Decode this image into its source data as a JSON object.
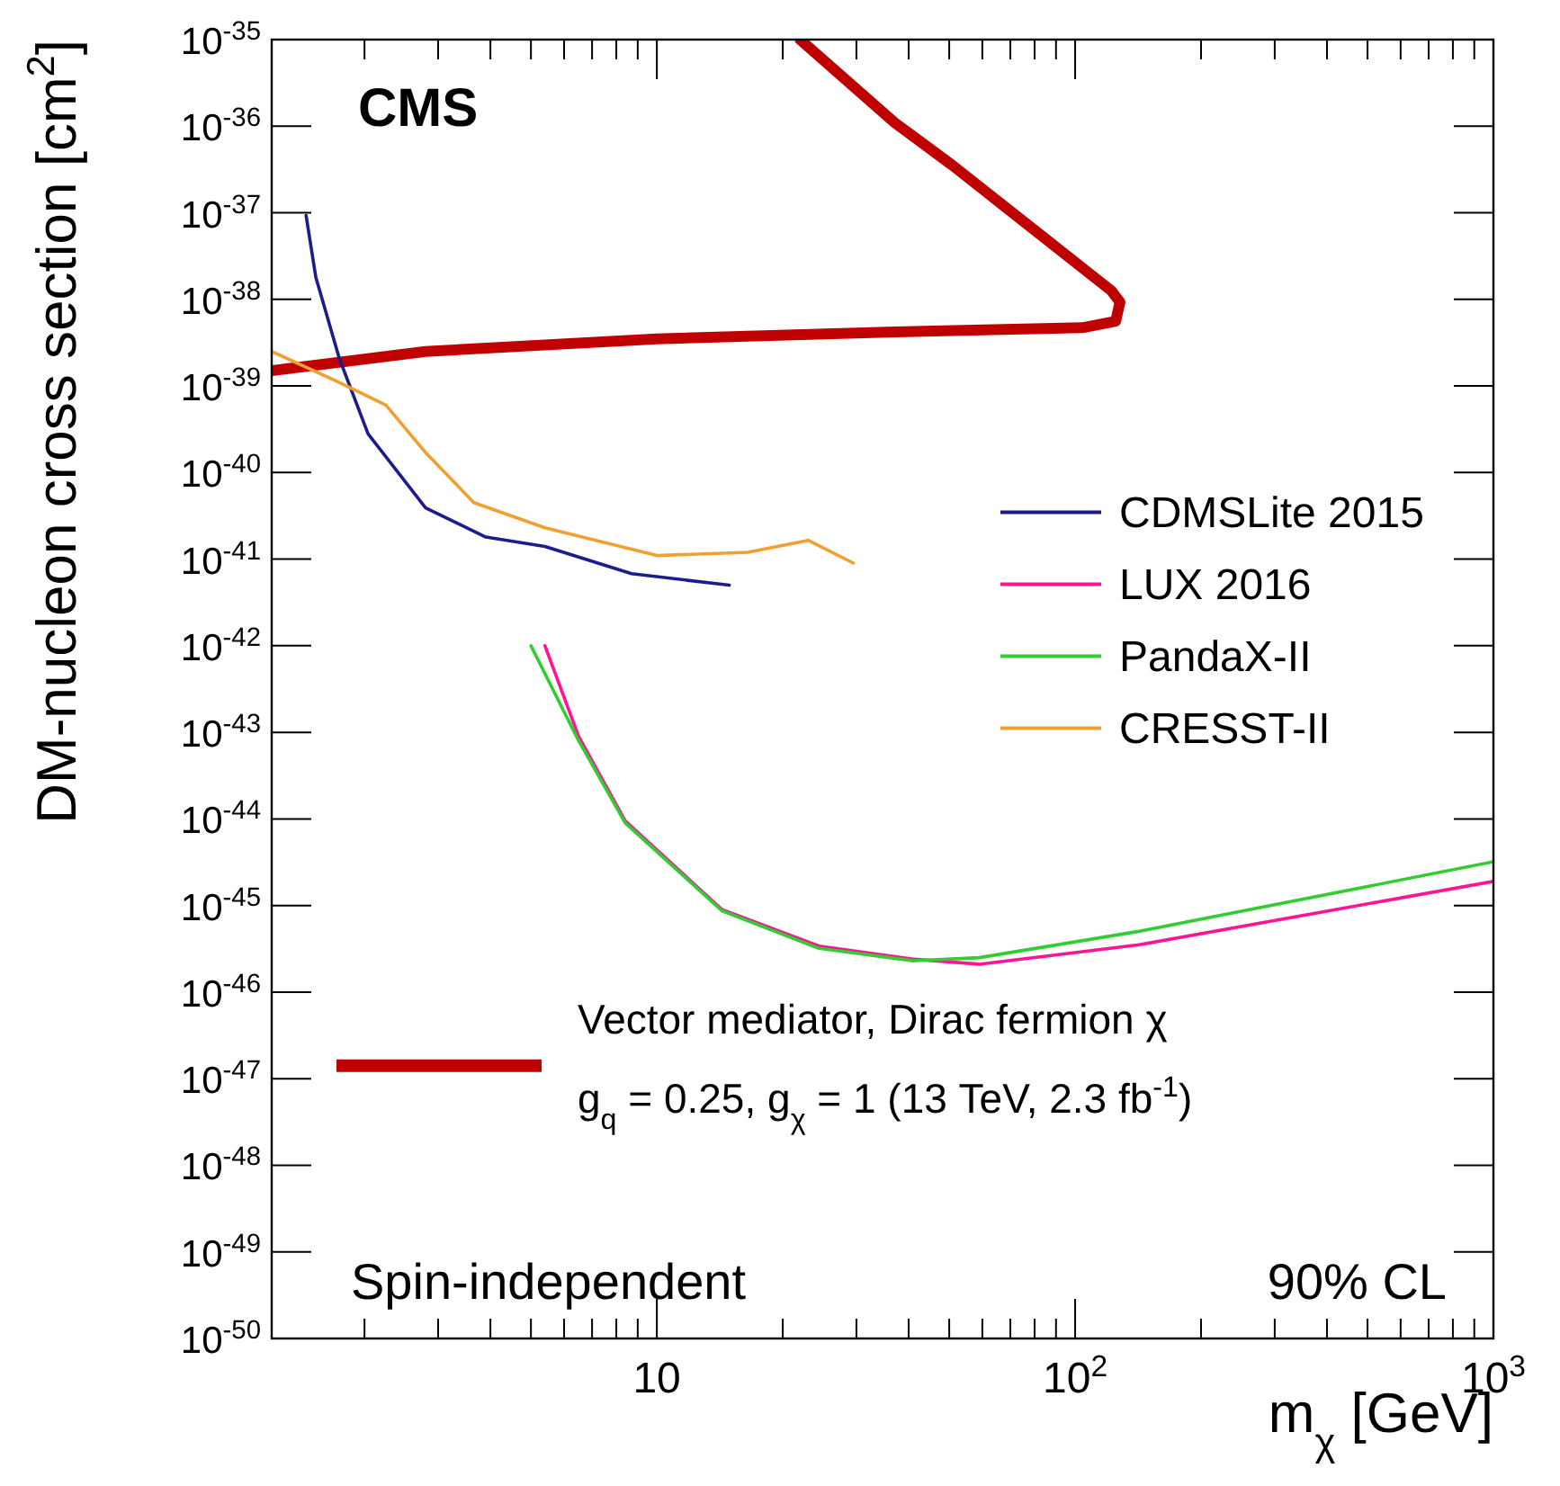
{
  "chart_data": {
    "type": "line",
    "xlabel": "m$_{χ}$ [GeV]",
    "ylabel": "DM-nucleon cross section [cm$^{2}$]",
    "log": "xy",
    "xlim": [
      1.2,
      1000
    ],
    "ylim": [
      1e-50,
      1e-35
    ],
    "xticks": [
      {
        "value": 2,
        "label": null
      },
      {
        "value": 3,
        "label": null
      },
      {
        "value": 4,
        "label": null
      },
      {
        "value": 5,
        "label": null
      },
      {
        "value": 6,
        "label": null
      },
      {
        "value": 7,
        "label": null
      },
      {
        "value": 8,
        "label": null
      },
      {
        "value": 9,
        "label": null
      },
      {
        "value": 10,
        "label": "10"
      },
      {
        "value": 20,
        "label": null
      },
      {
        "value": 30,
        "label": null
      },
      {
        "value": 40,
        "label": null
      },
      {
        "value": 50,
        "label": null
      },
      {
        "value": 60,
        "label": null
      },
      {
        "value": 70,
        "label": null
      },
      {
        "value": 80,
        "label": null
      },
      {
        "value": 90,
        "label": null
      },
      {
        "value": 100,
        "label": "10$^{2}$"
      },
      {
        "value": 200,
        "label": null
      },
      {
        "value": 300,
        "label": null
      },
      {
        "value": 400,
        "label": null
      },
      {
        "value": 500,
        "label": null
      },
      {
        "value": 600,
        "label": null
      },
      {
        "value": 700,
        "label": null
      },
      {
        "value": 800,
        "label": null
      },
      {
        "value": 900,
        "label": null
      },
      {
        "value": 1000,
        "label": "10$^{3}$"
      }
    ],
    "yticks": [
      {
        "value": 1e-50,
        "label": "10$^{-50}$"
      },
      {
        "value": 1e-49,
        "label": "10$^{-49}$"
      },
      {
        "value": 1e-48,
        "label": "10$^{-48}$"
      },
      {
        "value": 1e-47,
        "label": "10$^{-47}$"
      },
      {
        "value": 1e-46,
        "label": "10$^{-46}$"
      },
      {
        "value": 1e-45,
        "label": "10$^{-45}$"
      },
      {
        "value": 1e-44,
        "label": "10$^{-44}$"
      },
      {
        "value": 1e-43,
        "label": "10$^{-43}$"
      },
      {
        "value": 1e-42,
        "label": "10$^{-42}$"
      },
      {
        "value": 1e-41,
        "label": "10$^{-41}$"
      },
      {
        "value": 1e-40,
        "label": "10$^{-40}$"
      },
      {
        "value": 1e-39,
        "label": "10$^{-39}$"
      },
      {
        "value": 1e-38,
        "label": "10$^{-38}$"
      },
      {
        "value": 1e-37,
        "label": "10$^{-37}$"
      },
      {
        "value": 1e-36,
        "label": "10$^{-36}$"
      },
      {
        "value": 1e-35,
        "label": "10$^{-35}$"
      }
    ],
    "grid": false,
    "legend": "right",
    "annotations": [
      "CMS",
      "Spin-independent",
      "90% CL"
    ],
    "series": [
      {
        "name": "Vector mediator, Dirac fermion χ\ng$_{q}$ = 0.25, g$_{χ}$ = 1 (13 TeV, 2.3 fb$^{-1}$)",
        "color": "#c00000",
        "x": [
          1.2,
          2.8,
          10,
          37,
          104,
          125,
          128,
          122,
          51,
          37,
          22
        ],
        "values": [
          1.5e-39,
          2.5e-39,
          3.5e-39,
          4.2e-39,
          4.7e-39,
          5.6e-39,
          9.3e-39,
          1.26e-38,
          3.5e-37,
          1.1e-36,
          1e-35
        ]
      },
      {
        "name": "CDMSLite 2015",
        "color": "#1c1c8c",
        "x": [
          1.45,
          1.53,
          1.74,
          2.04,
          2.8,
          3.9,
          5.4,
          8.7,
          14.9
        ],
        "values": [
          9.3e-38,
          1.8e-38,
          2.1e-39,
          2.8e-40,
          3.9e-41,
          1.8e-41,
          1.4e-41,
          6.8e-42,
          5e-42
        ]
      },
      {
        "name": "LUX 2016",
        "color": "#ff1493",
        "x": [
          5.4,
          6.5,
          8.4,
          14.3,
          24.4,
          41,
          59,
          141,
          1000
        ],
        "values": [
          1e-42,
          9e-44,
          9.5e-45,
          9e-46,
          3.4e-46,
          2.4e-46,
          2.1e-46,
          3.5e-46,
          1.9e-45
        ]
      },
      {
        "name": "PandaX-II",
        "color": "#33cc33",
        "x": [
          5.0,
          6.5,
          8.4,
          14.3,
          24.4,
          41,
          59,
          141,
          1000
        ],
        "values": [
          1e-42,
          8e-44,
          9e-45,
          8.7e-46,
          3.2e-46,
          2.3e-46,
          2.5e-46,
          5e-46,
          3.2e-45
        ]
      },
      {
        "name": "CRESST-II",
        "color": "#f0a030",
        "x": [
          1.2,
          1.74,
          2.25,
          2.8,
          3.65,
          5.4,
          10,
          16.5,
          23,
          29.5
        ],
        "values": [
          2.5e-39,
          1.1e-39,
          6e-40,
          1.7e-40,
          4.5e-41,
          2.3e-41,
          1.1e-41,
          1.2e-41,
          1.65e-41,
          9e-42
        ]
      }
    ]
  }
}
